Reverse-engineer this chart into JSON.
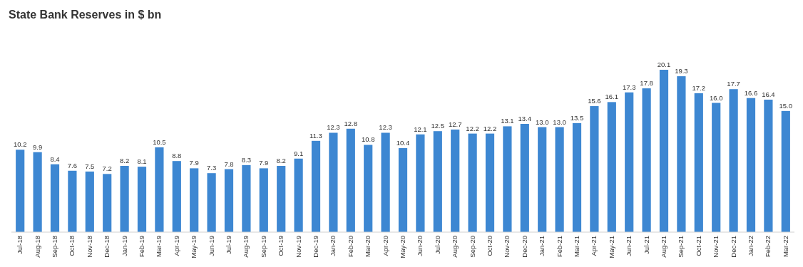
{
  "chart_data": {
    "type": "bar",
    "title": "State Bank Reserves in $ bn",
    "categories": [
      "Jul-18",
      "Aug-18",
      "Sep-18",
      "Oct-18",
      "Nov-18",
      "Dec-18",
      "Jan-19",
      "Feb-19",
      "Mar-19",
      "Apr-19",
      "May-19",
      "Jun-19",
      "Jul-19",
      "Aug-19",
      "Sep-19",
      "Oct-19",
      "Nov-19",
      "Dec-19",
      "Jan-20",
      "Feb-20",
      "Mar-20",
      "Apr-20",
      "May-20",
      "Jun-20",
      "Jul-20",
      "Aug-20",
      "Sep-20",
      "Oct-20",
      "Nov-20",
      "Dec-20",
      "Jan-21",
      "Feb-21",
      "Mar-21",
      "Apr-21",
      "May-21",
      "Jun-21",
      "Jul-21",
      "Aug-21",
      "Sep-21",
      "Oct-21",
      "Nov-21",
      "Dec-21",
      "Jan-22",
      "Feb-22",
      "Mar-22"
    ],
    "values": [
      10.2,
      9.9,
      8.4,
      7.6,
      7.5,
      7.2,
      8.2,
      8.1,
      10.5,
      8.8,
      7.9,
      7.3,
      7.8,
      8.3,
      7.9,
      8.2,
      9.1,
      11.3,
      12.3,
      12.8,
      10.8,
      12.3,
      10.4,
      12.1,
      12.5,
      12.7,
      12.2,
      12.2,
      13.1,
      13.4,
      13.0,
      13.0,
      13.5,
      15.6,
      16.1,
      17.3,
      17.8,
      20.1,
      19.3,
      17.2,
      16.0,
      17.7,
      16.6,
      16.4,
      15.0
    ],
    "value_labels": [
      "10.2",
      "9.9",
      "8.4",
      "7.6",
      "7.5",
      "7.2",
      "8.2",
      "8.1",
      "10.5",
      "8.8",
      "7.9",
      "7.3",
      "7.8",
      "8.3",
      "7.9",
      "8.2",
      "9.1",
      "11.3",
      "12.3",
      "12.8",
      "10.8",
      "12.3",
      "10.4",
      "12.1",
      "12.5",
      "12.7",
      "12.2",
      "12.2",
      "13.1",
      "13.4",
      "13.0",
      "13.0",
      "13.5",
      "15.6",
      "16.1",
      "17.3",
      "17.8",
      "20.1",
      "19.3",
      "17.2",
      "16.0",
      "17.7",
      "16.6",
      "16.4",
      "15.0"
    ],
    "color": "#3d87d2"
  }
}
